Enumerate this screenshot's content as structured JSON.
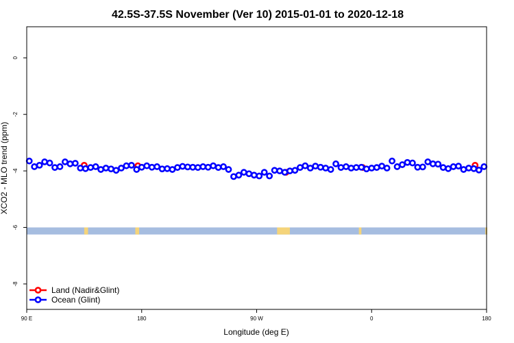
{
  "chart_data": {
    "type": "scatter",
    "title": "42.5S-37.5S November (Ver 10)   2015-01-01 to 2020-12-18",
    "xlabel": "Longitude (deg E)",
    "ylabel": "XCO2 - MLO trend (ppm)",
    "xlim": [
      90,
      450
    ],
    "ylim": [
      -8.9,
      1.1
    ],
    "x_ticks": [
      {
        "value": 90,
        "label": "90 E"
      },
      {
        "value": 180,
        "label": "180"
      },
      {
        "value": 270,
        "label": "90 W"
      },
      {
        "value": 360,
        "label": "0"
      },
      {
        "value": 450,
        "label": "180"
      }
    ],
    "y_ticks": [
      {
        "value": 0,
        "label": "0"
      },
      {
        "value": -2,
        "label": "-2"
      },
      {
        "value": -4,
        "label": "-4"
      },
      {
        "value": -6,
        "label": "-6"
      },
      {
        "value": -8,
        "label": "-8"
      }
    ],
    "grid": false,
    "legend_position": "bottom-left",
    "series": [
      {
        "name": "Land (Nadir&Glint)",
        "color": "#ff0000",
        "x": [
          135,
          177,
          293,
          353,
          441,
          457
        ],
        "y": [
          -3.8,
          -3.82,
          -4.05,
          -3.88,
          -3.8,
          -3.82
        ]
      },
      {
        "name": "Ocean (Glint)",
        "color": "#0000ff",
        "x": [
          92,
          96,
          100,
          104,
          108,
          112,
          116,
          120,
          124,
          128,
          132,
          136,
          140,
          144,
          148,
          152,
          156,
          160,
          164,
          168,
          172,
          176,
          180,
          184,
          188,
          192,
          196,
          200,
          204,
          208,
          212,
          216,
          220,
          224,
          228,
          232,
          236,
          240,
          244,
          248,
          252,
          256,
          260,
          264,
          268,
          272,
          276,
          280,
          284,
          288,
          292,
          296,
          300,
          304,
          308,
          312,
          316,
          320,
          324,
          328,
          332,
          336,
          340,
          344,
          348,
          352,
          356,
          360,
          364,
          368,
          372,
          376,
          380,
          384,
          388,
          392,
          396,
          400,
          404,
          408,
          412,
          416,
          420,
          424,
          428,
          432,
          436,
          440,
          444,
          448,
          452,
          456,
          460
        ],
        "y": [
          -3.65,
          -3.85,
          -3.8,
          -3.68,
          -3.72,
          -3.88,
          -3.85,
          -3.68,
          -3.75,
          -3.73,
          -3.9,
          -3.92,
          -3.88,
          -3.85,
          -3.95,
          -3.9,
          -3.93,
          -3.98,
          -3.9,
          -3.82,
          -3.8,
          -3.95,
          -3.87,
          -3.82,
          -3.87,
          -3.85,
          -3.93,
          -3.92,
          -3.95,
          -3.88,
          -3.84,
          -3.86,
          -3.87,
          -3.88,
          -3.85,
          -3.87,
          -3.82,
          -3.88,
          -3.85,
          -3.95,
          -4.2,
          -4.15,
          -4.05,
          -4.1,
          -4.15,
          -4.18,
          -4.05,
          -4.18,
          -3.98,
          -4.0,
          -4.05,
          -4.0,
          -3.98,
          -3.88,
          -3.82,
          -3.9,
          -3.83,
          -3.87,
          -3.9,
          -3.95,
          -3.75,
          -3.88,
          -3.85,
          -3.9,
          -3.88,
          -3.87,
          -3.93,
          -3.9,
          -3.88,
          -3.83,
          -3.9,
          -3.65,
          -3.85,
          -3.78,
          -3.7,
          -3.72,
          -3.87,
          -3.86,
          -3.68,
          -3.75,
          -3.76,
          -3.88,
          -3.92,
          -3.85,
          -3.83,
          -3.95,
          -3.9,
          -3.92,
          -3.97,
          -3.85,
          -3.88,
          -3.9,
          -3.95
        ]
      }
    ],
    "surface_band": {
      "y_range": [
        -6.25,
        -6.0
      ],
      "ocean_color": "#a6bde0",
      "land_color": "#f5d47a",
      "land_segments": [
        [
          135,
          138
        ],
        [
          175,
          178
        ],
        [
          286,
          296
        ],
        [
          350,
          352
        ],
        [
          449,
          452
        ],
        [
          455,
          460
        ]
      ]
    }
  }
}
